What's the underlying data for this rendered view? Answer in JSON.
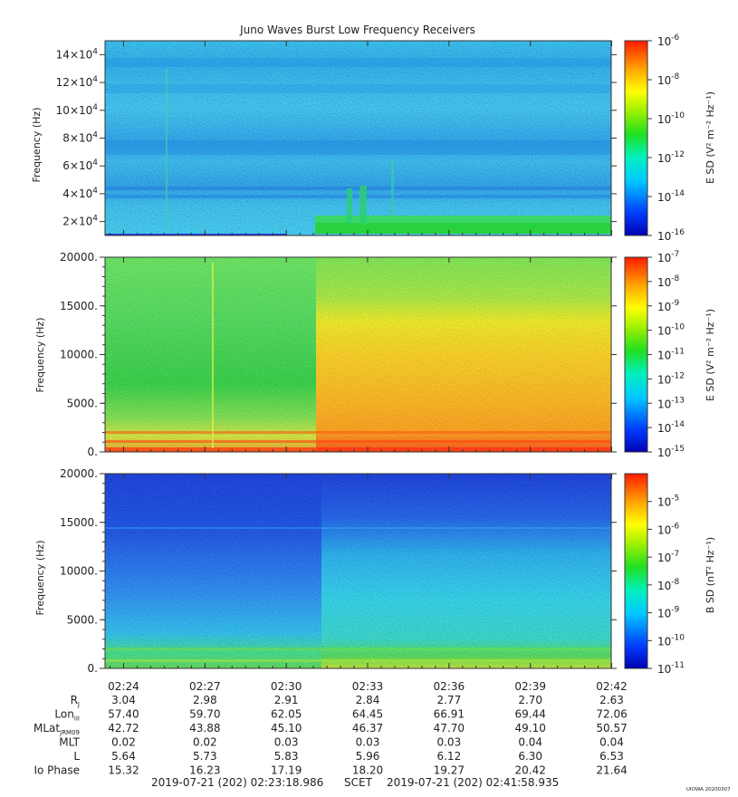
{
  "chart_data": [
    {
      "type": "heatmap",
      "title": "Juno Waves Burst Low Frequency Receivers",
      "ylabel": "Frequency (Hz)",
      "ylim": [
        10000,
        150000
      ],
      "yticks": [
        {
          "value": 20000,
          "base": "2×10",
          "exp": "4"
        },
        {
          "value": 40000,
          "base": "4×10",
          "exp": "4"
        },
        {
          "value": 60000,
          "base": "6×10",
          "exp": "4"
        },
        {
          "value": 80000,
          "base": "8×10",
          "exp": "4"
        },
        {
          "value": 100000,
          "base": "10×10",
          "exp": "4"
        },
        {
          "value": 120000,
          "base": "12×10",
          "exp": "4"
        },
        {
          "value": 140000,
          "base": "14×10",
          "exp": "4"
        }
      ],
      "colorbar": {
        "label": "E SD (V² m⁻² Hz⁻¹)",
        "scale": "log",
        "range": [
          -16,
          -6
        ],
        "ticks": [
          {
            "exp": "-6",
            "value": -6
          },
          {
            "exp": "-8",
            "value": -8
          },
          {
            "exp": "-10",
            "value": -10
          },
          {
            "exp": "-12",
            "value": -12
          },
          {
            "exp": "-14",
            "value": -14
          },
          {
            "exp": "-16",
            "value": -16
          }
        ]
      }
    },
    {
      "type": "heatmap",
      "ylabel": "Frequency (Hz)",
      "ylim": [
        0,
        20000
      ],
      "yticks": [
        {
          "value": 0,
          "label": "0."
        },
        {
          "value": 5000,
          "label": "5000."
        },
        {
          "value": 10000,
          "label": "10000."
        },
        {
          "value": 15000,
          "label": "15000."
        },
        {
          "value": 20000,
          "label": "20000."
        }
      ],
      "colorbar": {
        "label": "E SD (V² m⁻² Hz⁻¹)",
        "scale": "log",
        "range": [
          -15,
          -7
        ],
        "ticks": [
          {
            "exp": "-7",
            "value": -7
          },
          {
            "exp": "-8",
            "value": -8
          },
          {
            "exp": "-9",
            "value": -9
          },
          {
            "exp": "-10",
            "value": -10
          },
          {
            "exp": "-11",
            "value": -11
          },
          {
            "exp": "-12",
            "value": -12
          },
          {
            "exp": "-13",
            "value": -13
          },
          {
            "exp": "-14",
            "value": -14
          },
          {
            "exp": "-15",
            "value": -15
          }
        ]
      }
    },
    {
      "type": "heatmap",
      "ylabel": "Frequency (Hz)",
      "ylim": [
        0,
        20000
      ],
      "yticks": [
        {
          "value": 0,
          "label": "0."
        },
        {
          "value": 5000,
          "label": "5000."
        },
        {
          "value": 10000,
          "label": "10000."
        },
        {
          "value": 15000,
          "label": "15000."
        },
        {
          "value": 20000,
          "label": "20000."
        }
      ],
      "colorbar": {
        "label": "B SD (nT² Hz⁻¹)",
        "scale": "log",
        "range": [
          -11,
          -4
        ],
        "ticks": [
          {
            "exp": "-5",
            "value": -5
          },
          {
            "exp": "-6",
            "value": -6
          },
          {
            "exp": "-7",
            "value": -7
          },
          {
            "exp": "-8",
            "value": -8
          },
          {
            "exp": "-9",
            "value": -9
          },
          {
            "exp": "-10",
            "value": -10
          },
          {
            "exp": "-11",
            "value": -11
          }
        ]
      }
    }
  ],
  "time_axis": {
    "range_minutes": [
      23.316,
      41.982
    ],
    "ticks": [
      {
        "label": "02:24",
        "minute": 24
      },
      {
        "label": "02:27",
        "minute": 27
      },
      {
        "label": "02:30",
        "minute": 30
      },
      {
        "label": "02:33",
        "minute": 33
      },
      {
        "label": "02:36",
        "minute": 36
      },
      {
        "label": "02:39",
        "minute": 39
      },
      {
        "label": "02:42",
        "minute": 42
      }
    ]
  },
  "ephemeris": [
    {
      "label": "R",
      "sub": "J",
      "values": [
        "3.04",
        "2.98",
        "2.91",
        "2.84",
        "2.77",
        "2.70",
        "2.63"
      ]
    },
    {
      "label": "Lon",
      "sub": "III",
      "values": [
        "57.40",
        "59.70",
        "62.05",
        "64.45",
        "66.91",
        "69.44",
        "72.06"
      ]
    },
    {
      "label": "MLat",
      "sub": "JRM09",
      "values": [
        "42.72",
        "43.88",
        "45.10",
        "46.37",
        "47.70",
        "49.10",
        "50.57"
      ]
    },
    {
      "label": "MLT",
      "sub": "",
      "values": [
        "0.02",
        "0.02",
        "0.03",
        "0.03",
        "0.03",
        "0.04",
        "0.04"
      ]
    },
    {
      "label": "L",
      "sub": "",
      "values": [
        "5.64",
        "5.73",
        "5.83",
        "5.96",
        "6.12",
        "6.30",
        "6.53"
      ]
    },
    {
      "label": "Io Phase",
      "sub": "",
      "values": [
        "15.32",
        "16.23",
        "17.19",
        "18.20",
        "19.27",
        "20.42",
        "21.64"
      ]
    }
  ],
  "footer": {
    "start": "2019-07-21 (202) 02:23:18.986",
    "scet": "SCET",
    "end": "2019-07-21 (202) 02:41:58.935",
    "stamp": "UIOWA 20200307"
  }
}
